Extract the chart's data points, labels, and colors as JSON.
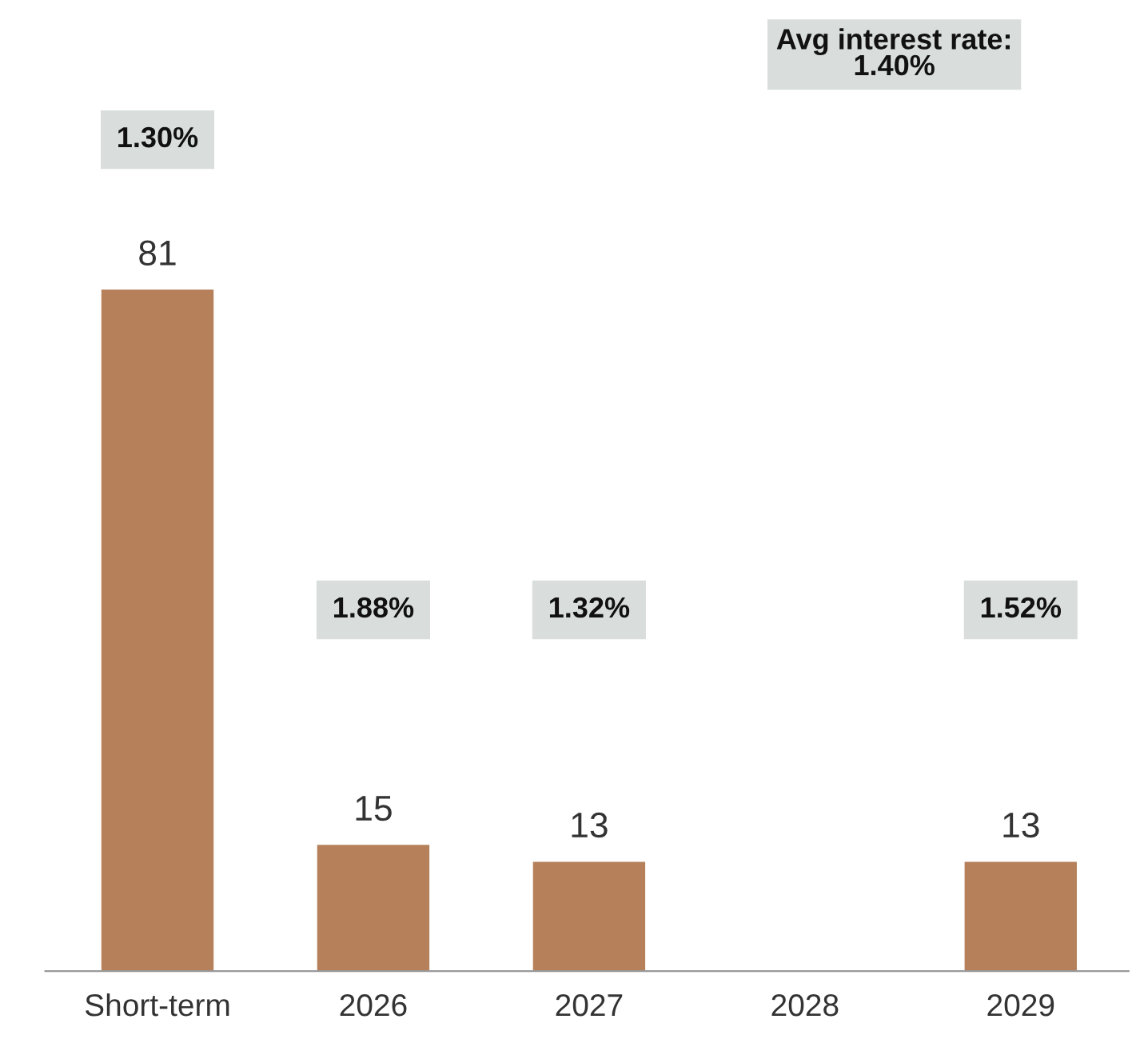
{
  "chart_data": {
    "type": "bar",
    "categories": [
      "Short-term",
      "2026",
      "2027",
      "2028",
      "2029"
    ],
    "values": [
      81,
      15,
      13,
      null,
      13
    ],
    "color": "#b5805a",
    "data_labels": true,
    "grid": false,
    "legend": false,
    "tick_labels": "x",
    "annotations": [
      "1.30%",
      "1.88%",
      "1.32%",
      "1.52%",
      "Avg interest rate:\n1.40%"
    ]
  }
}
